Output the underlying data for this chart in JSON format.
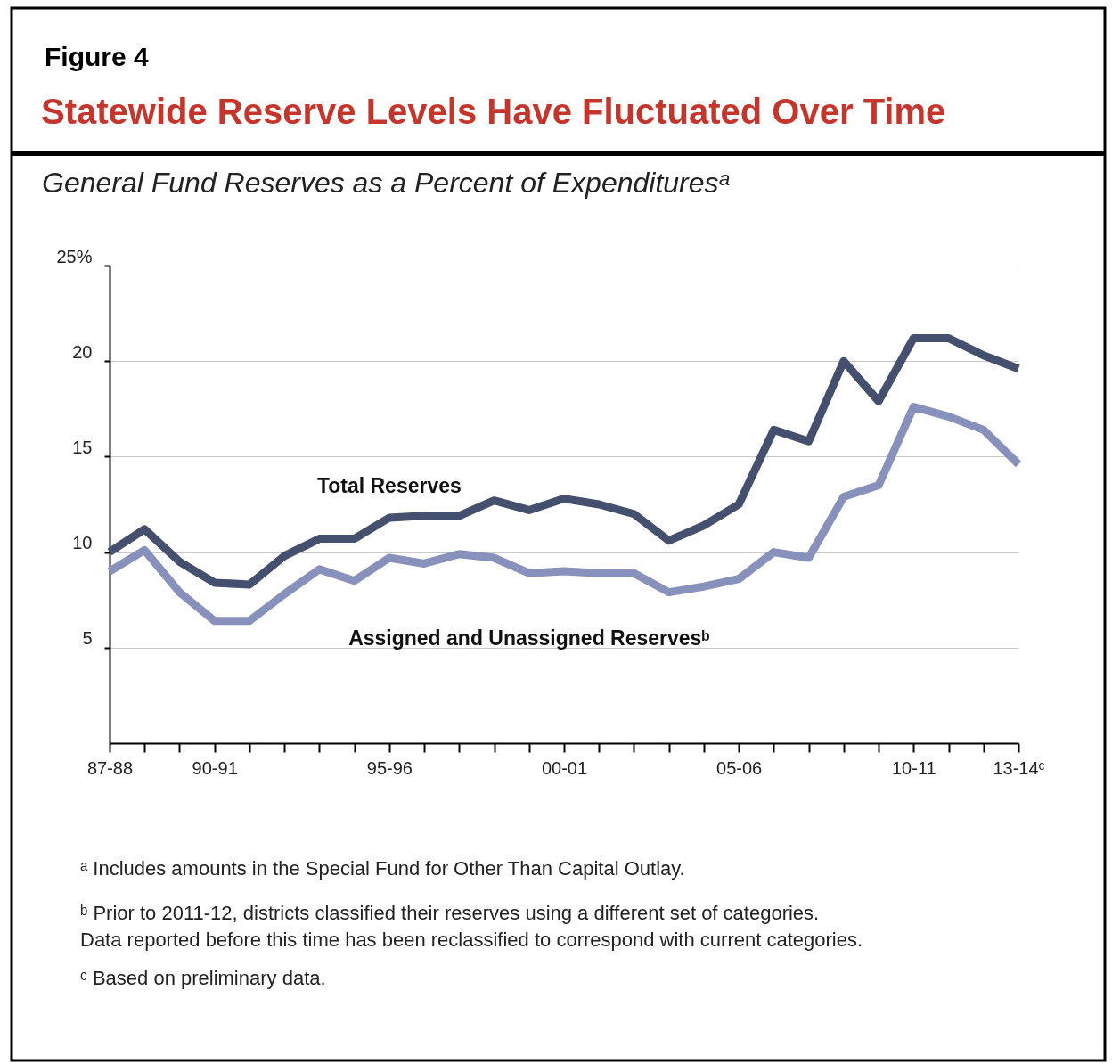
{
  "chart_data": {
    "type": "line",
    "title": "Statewide Reserve Levels Have Fluctuated Over Time",
    "subtitle": "General Fund Reserves as a Percent of Expendituresᵃ",
    "categories": [
      "87-88",
      null,
      null,
      "90-91",
      null,
      null,
      null,
      null,
      "95-96",
      null,
      null,
      null,
      null,
      "00-01",
      null,
      null,
      null,
      null,
      "05-06",
      null,
      null,
      null,
      null,
      "10-11",
      null,
      null,
      "13-14ᶜ"
    ],
    "series": [
      {
        "name": "Total Reserves",
        "color": "#454f6e",
        "values": [
          10.0,
          11.2,
          9.5,
          8.4,
          8.3,
          9.8,
          10.7,
          10.7,
          11.8,
          11.9,
          11.9,
          12.7,
          12.2,
          12.8,
          12.5,
          12.0,
          10.6,
          11.4,
          12.5,
          16.4,
          15.8,
          20.0,
          17.9,
          21.2,
          21.2,
          20.3,
          19.6
        ]
      },
      {
        "name": "Assigned and Unassigned Reservesᵇ",
        "color": "#8891bb",
        "values": [
          9.0,
          10.1,
          7.9,
          6.4,
          6.4,
          7.8,
          9.1,
          8.5,
          9.7,
          9.4,
          9.9,
          9.7,
          8.9,
          9.0,
          8.9,
          8.9,
          7.9,
          8.2,
          8.6,
          10.0,
          9.7,
          12.9,
          13.5,
          17.6,
          17.1,
          16.4,
          14.6
        ]
      }
    ],
    "ylim": [
      0,
      25
    ],
    "yticks": [
      {
        "value": 25,
        "label": "25%"
      },
      20,
      15,
      10,
      5
    ],
    "grid": "y",
    "marker": "none",
    "line_style": "solid",
    "annotations": [
      "Figure 4",
      "ᵃ Includes amounts in the Special Fund for Other Than Capital Outlay.",
      "ᵇ Prior to 2011-12, districts classified their reserves using a different set of categories. Data reported before this time has been reclassified to correspond with current categories.",
      "ᶜ Based on preliminary data."
    ]
  }
}
